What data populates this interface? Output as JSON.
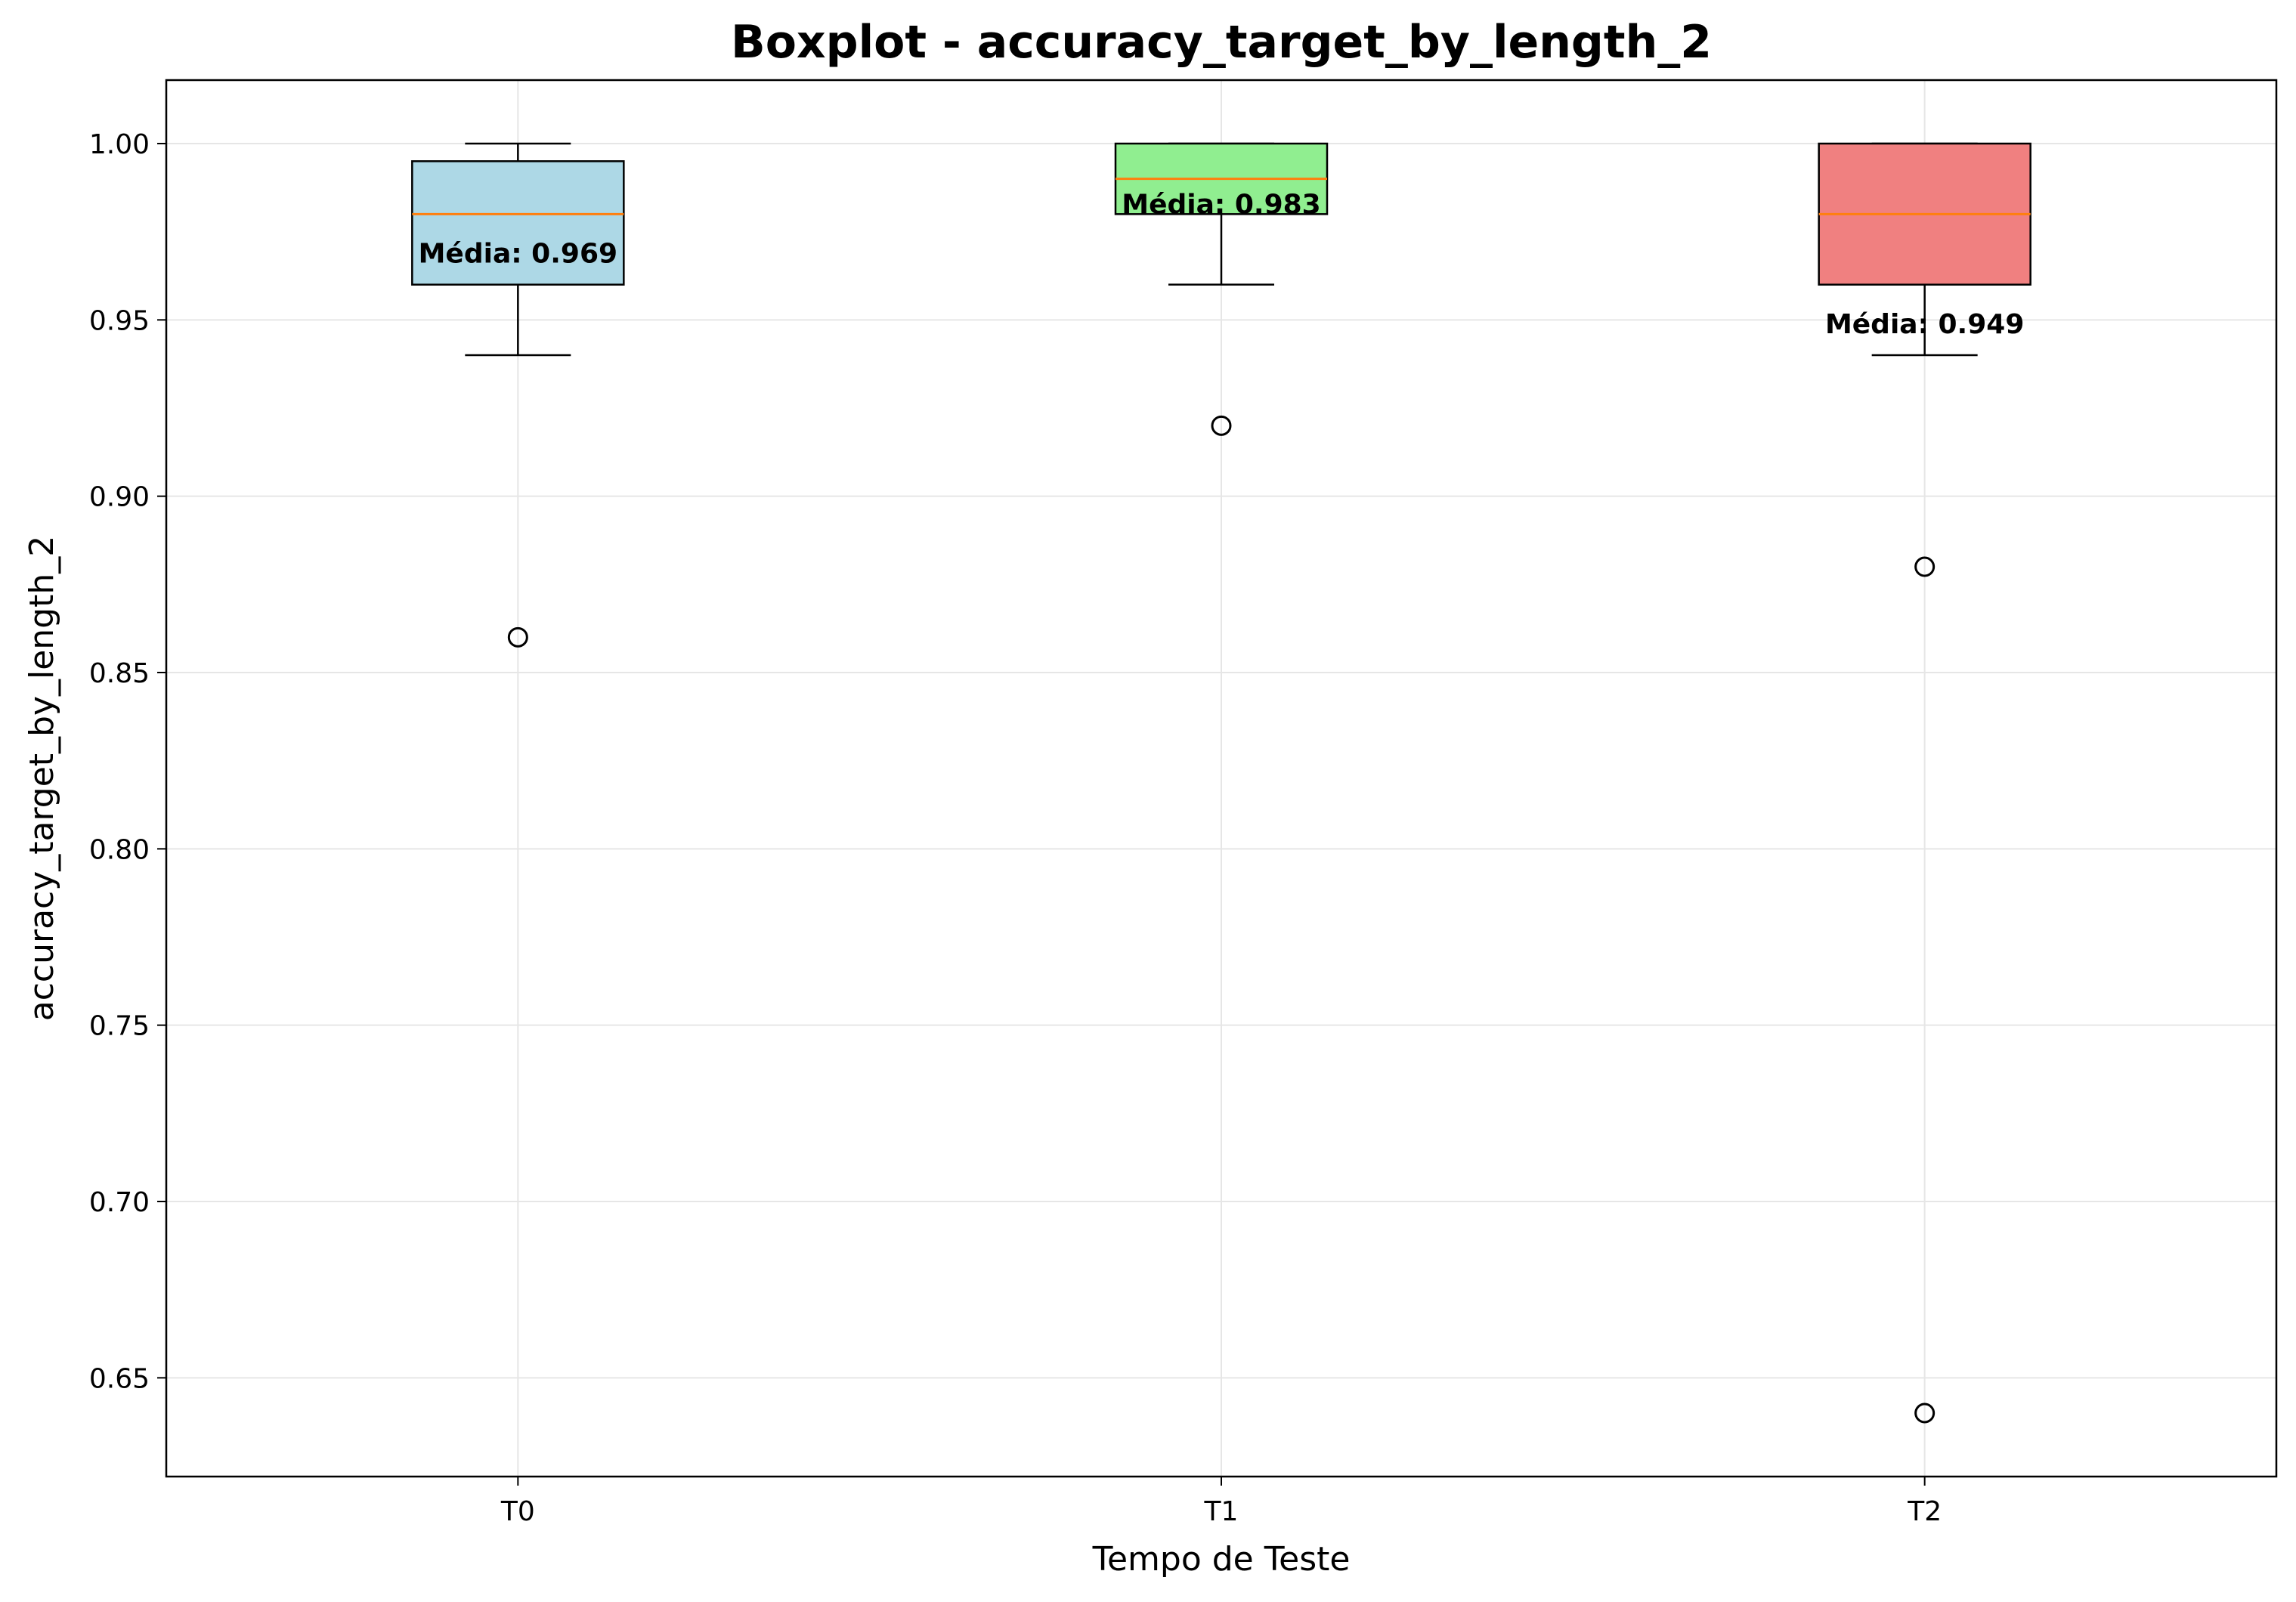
{
  "chart_data": {
    "type": "box",
    "title": "Boxplot - accuracy_target_by_length_2",
    "xlabel": "Tempo de Teste",
    "ylabel": "accuracy_target_by_length_2",
    "categories": [
      "T0",
      "T1",
      "T2"
    ],
    "ylim": [
      0.622,
      1.018
    ],
    "yticks": [
      0.65,
      0.7,
      0.75,
      0.8,
      0.85,
      0.9,
      0.95,
      1.0
    ],
    "ytick_labels": [
      "0.65",
      "0.70",
      "0.75",
      "0.80",
      "0.85",
      "0.90",
      "0.95",
      "1.00"
    ],
    "grid": true,
    "boxes": [
      {
        "category": "T0",
        "whisker_low": 0.94,
        "q1": 0.96,
        "median": 0.98,
        "q3": 0.995,
        "whisker_high": 1.0,
        "outliers": [
          0.86
        ],
        "mean": 0.969,
        "mean_label": "Média: 0.969",
        "color": "#add8e6"
      },
      {
        "category": "T1",
        "whisker_low": 0.96,
        "q1": 0.98,
        "median": 0.99,
        "q3": 1.0,
        "whisker_high": 1.0,
        "outliers": [
          0.92
        ],
        "mean": 0.983,
        "mean_label": "Média: 0.983",
        "color": "#90ee90"
      },
      {
        "category": "T2",
        "whisker_low": 0.94,
        "q1": 0.96,
        "median": 0.98,
        "q3": 1.0,
        "whisker_high": 1.0,
        "outliers": [
          0.88,
          0.64
        ],
        "mean": 0.949,
        "mean_label": "Média: 0.949",
        "color": "#f08080"
      }
    ],
    "median_color": "#ff7f0e"
  }
}
